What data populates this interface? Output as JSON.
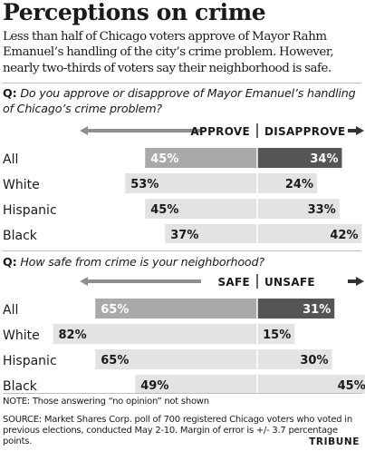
{
  "title": "Perceptions on crime",
  "subtitle": "Less than half of Chicago voters approve of Mayor Rahm Emanuel’s handling of the city’s crime problem. However, nearly two-thirds of voters say their neighborhood is safe.",
  "note": "NOTE: Those answering “no opinion” not shown",
  "source": "SOURCE: Market Shares Corp. poll of 700 registered Chicago voters who voted in previous elections, conducted May 2-10. Margin of error is +/- 3.7 percentage points.",
  "credit": "TRIBUNE",
  "colors": {
    "text": "#1a1a1a",
    "highlight_positive": "#a9a9a9",
    "highlight_negative": "#555555",
    "light_bar": "#e3e3e3",
    "rule": "#bdbdbd",
    "divider": "#333333"
  },
  "chart_data": [
    {
      "type": "bar",
      "question_prefix": "Q:",
      "question": "Do you approve or disapprove of Mayor Emanuel’s handling of Chicago’s crime problem?",
      "left_label": "APPROVE",
      "right_label": "DISAPPROVE",
      "value_suffix": "%",
      "categories": [
        "All",
        "White",
        "Hispanic",
        "Black"
      ],
      "series": [
        {
          "name": "APPROVE",
          "values": [
            45,
            53,
            45,
            37
          ]
        },
        {
          "name": "DISAPPROVE",
          "values": [
            34,
            24,
            33,
            42
          ]
        }
      ],
      "highlighted_category": "All"
    },
    {
      "type": "bar",
      "question_prefix": "Q:",
      "question": "How safe from crime is your neighborhood?",
      "left_label": "SAFE",
      "right_label": "UNSAFE",
      "value_suffix": "%",
      "categories": [
        "All",
        "White",
        "Hispanic",
        "Black"
      ],
      "series": [
        {
          "name": "SAFE",
          "values": [
            65,
            82,
            65,
            49
          ]
        },
        {
          "name": "UNSAFE",
          "values": [
            31,
            15,
            30,
            45
          ]
        }
      ],
      "highlighted_category": "All"
    }
  ]
}
